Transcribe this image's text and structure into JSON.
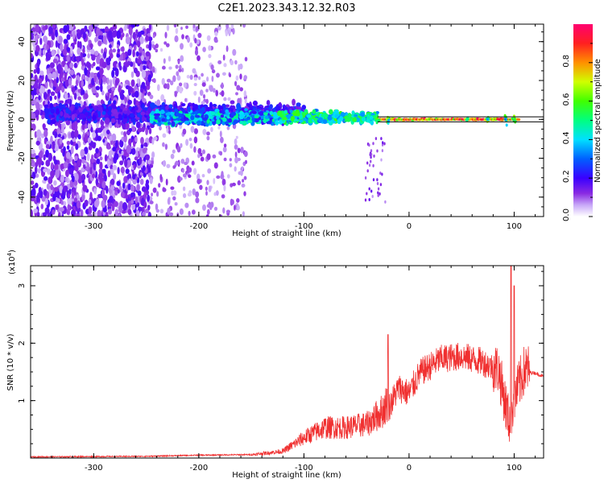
{
  "title": "C2E1.2023.343.12.32.R03",
  "top_chart": {
    "xlabel": "Height of straight line (km)",
    "ylabel": "Frequency (Hz)",
    "xlim": [
      -360,
      128
    ],
    "ylim": [
      -50,
      49
    ],
    "xticks": [
      -300,
      -200,
      -100,
      0,
      100
    ],
    "yticks": [
      -40,
      -20,
      0,
      20,
      40
    ],
    "colorbar": {
      "label": "Normalized spectral amplitude",
      "ticks": [
        "0.0",
        "0.2",
        "0.4",
        "0.6",
        "0.8"
      ],
      "tick_values": [
        0.0,
        0.2,
        0.4,
        0.6,
        0.8
      ],
      "range": [
        0,
        1
      ]
    }
  },
  "bottom_chart": {
    "xlabel": "Height of straight line (km)",
    "ylabel": "SNR (10 * v/v)",
    "exponent_label": "(x10",
    "exponent_power": "4",
    "exponent_close": ")",
    "xlim": [
      -360,
      128
    ],
    "ylim": [
      0,
      3.35
    ],
    "xticks": [
      -300,
      -200,
      -100,
      0,
      100
    ],
    "yticks": [
      1,
      2,
      3
    ],
    "line_color": "#f03030"
  },
  "chart_data": [
    {
      "type": "heatmap",
      "title": "C2E1.2023.343.12.32.R03",
      "xlabel": "Height of straight line (km)",
      "ylabel": "Frequency (Hz)",
      "xlim": [
        -360,
        128
      ],
      "ylim": [
        -50,
        49
      ],
      "description_points": [
        {
          "x_range": [
            -360,
            -245
          ],
          "freq_spread": [
            -50,
            49
          ],
          "amplitude": 0.15
        },
        {
          "x_range": [
            -245,
            -160
          ],
          "freq_spread": [
            -50,
            49
          ],
          "amplitude": 0.05
        },
        {
          "x_range": [
            -245,
            -100
          ],
          "freq_spread": [
            -8,
            12
          ],
          "amplitude": 0.25
        },
        {
          "x_range": [
            -100,
            -30
          ],
          "freq_spread": [
            -6,
            8
          ],
          "amplitude": 0.4
        },
        {
          "x_range": [
            -30,
            105
          ],
          "freq_spread": [
            -1,
            1
          ],
          "amplitude": 0.8
        }
      ],
      "colorbar_range": [
        0,
        1
      ]
    },
    {
      "type": "line",
      "xlabel": "Height of straight line (km)",
      "ylabel": "SNR (10 * v/v)",
      "xlim": [
        -360,
        128
      ],
      "ylim": [
        0,
        3.35
      ],
      "envelope": {
        "x": [
          -360,
          -250,
          -200,
          -150,
          -120,
          -100,
          -80,
          -60,
          -40,
          -25,
          -18,
          -10,
          0,
          10,
          30,
          50,
          70,
          85,
          95,
          100,
          110,
          120,
          128
        ],
        "y": [
          0.01,
          0.02,
          0.04,
          0.05,
          0.1,
          0.3,
          0.45,
          0.45,
          0.5,
          0.7,
          0.9,
          1.2,
          1.1,
          1.45,
          1.7,
          1.75,
          1.65,
          1.5,
          0.6,
          1.0,
          1.5,
          1.48,
          1.42
        ]
      },
      "peaks": [
        {
          "x": -20,
          "y": 2.15
        },
        {
          "x": 97,
          "y": 3.35
        },
        {
          "x": 100,
          "y": 3.0
        }
      ]
    }
  ]
}
